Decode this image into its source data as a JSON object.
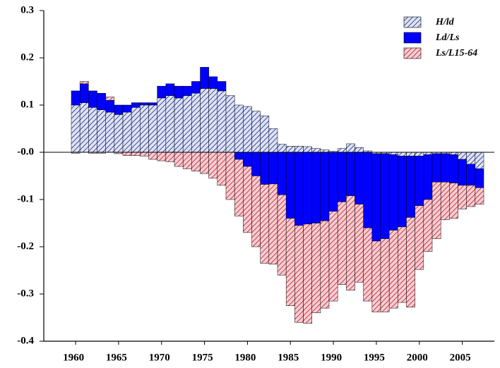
{
  "chart_data": {
    "type": "stacked_bar",
    "categories": [
      "1960",
      null,
      null,
      null,
      null,
      "1965",
      null,
      null,
      null,
      null,
      "1970",
      null,
      null,
      null,
      null,
      "1975",
      null,
      null,
      null,
      null,
      "1980",
      null,
      null,
      null,
      null,
      "1985",
      null,
      null,
      null,
      null,
      "1990",
      null,
      null,
      null,
      null,
      "1995",
      null,
      null,
      null,
      null,
      "2000",
      null,
      null,
      null,
      null,
      "2005",
      null,
      null
    ],
    "series": [
      {
        "name": "H/ld",
        "color": "#1a237e",
        "background": "#dde3f5",
        "pattern": "hatch",
        "values": [
          0.1,
          0.105,
          0.095,
          0.09,
          0.085,
          0.08,
          0.085,
          0.095,
          0.1,
          0.1,
          0.115,
          0.12,
          0.115,
          0.12,
          0.125,
          0.135,
          0.135,
          0.13,
          0.12,
          0.1,
          0.097,
          0.087,
          0.077,
          0.05,
          0.017,
          0.013,
          0.013,
          0.012,
          0.008,
          0.005,
          0.002,
          0.008,
          0.018,
          0.01,
          0.003,
          -0.003,
          -0.003,
          -0.005,
          -0.008,
          -0.008,
          -0.008,
          -0.005,
          -0.003,
          -0.003,
          -0.005,
          -0.015,
          -0.025,
          -0.035
        ]
      },
      {
        "name": "Ld/Ls",
        "color": "#0000ff",
        "background": "#0000ff",
        "pattern": "solid",
        "values": [
          0.03,
          0.04,
          0.035,
          0.035,
          0.025,
          0.02,
          0.015,
          0.01,
          0.005,
          0.005,
          0.025,
          0.025,
          0.025,
          0.02,
          0.025,
          0.045,
          0.025,
          0.02,
          0.0,
          -0.015,
          -0.03,
          -0.05,
          -0.068,
          -0.067,
          -0.09,
          -0.14,
          -0.155,
          -0.152,
          -0.15,
          -0.145,
          -0.125,
          -0.105,
          -0.092,
          -0.11,
          -0.16,
          -0.185,
          -0.18,
          -0.16,
          -0.15,
          -0.13,
          -0.105,
          -0.095,
          -0.06,
          -0.06,
          -0.06,
          -0.055,
          -0.045,
          -0.04
        ]
      },
      {
        "name": "Ls/L15-64",
        "color": "#b71c1c",
        "background": "#f7ccd4",
        "pattern": "hatch",
        "values": [
          -0.002,
          0.005,
          -0.002,
          -0.002,
          0.007,
          -0.003,
          -0.007,
          -0.007,
          -0.008,
          -0.015,
          -0.018,
          -0.02,
          -0.03,
          -0.035,
          -0.04,
          -0.045,
          -0.055,
          -0.07,
          -0.1,
          -0.12,
          -0.14,
          -0.15,
          -0.167,
          -0.17,
          -0.17,
          -0.185,
          -0.205,
          -0.21,
          -0.19,
          -0.185,
          -0.19,
          -0.175,
          -0.2,
          -0.165,
          -0.155,
          -0.15,
          -0.155,
          -0.165,
          -0.16,
          -0.19,
          -0.135,
          -0.11,
          -0.12,
          -0.08,
          -0.075,
          -0.05,
          -0.045,
          -0.035
        ]
      }
    ],
    "ylim": [
      -0.4,
      0.3
    ],
    "yticks": [
      0.3,
      0.2,
      0.1,
      {
        "value": 0,
        "label": "-0.0"
      },
      -0.1,
      -0.2,
      -0.3,
      -0.4
    ],
    "grid": false,
    "legend": "upper right"
  }
}
